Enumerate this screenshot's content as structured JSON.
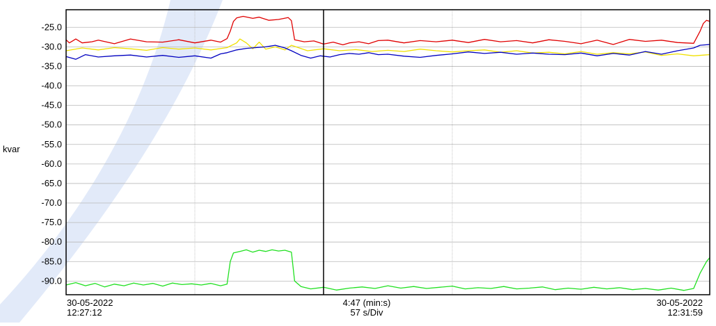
{
  "chart_data": {
    "type": "line",
    "ylabel": "kvar",
    "ylim": [
      -93.5,
      -20.5
    ],
    "yticks": [
      "-25.0",
      "-30.0",
      "-35.0",
      "-40.0",
      "-45.0",
      "-50.0",
      "-55.0",
      "-60.0",
      "-65.0",
      "-70.0",
      "-75.0",
      "-80.0",
      "-85.0",
      "-90.0"
    ],
    "ytick_values": [
      -25,
      -30,
      -35,
      -40,
      -45,
      -50,
      -55,
      -60,
      -65,
      -70,
      -75,
      -80,
      -85,
      -90
    ],
    "x_divisions": 5,
    "cursor_division": 2,
    "grid": true,
    "x_start": {
      "date": "30-05-2022",
      "time": "12:27:12"
    },
    "x_end": {
      "date": "30-05-2022",
      "time": "12:31:59"
    },
    "x_span": "4:47 (min:s)",
    "x_scale": "57 s/Div",
    "series": [
      {
        "color": "#e00000",
        "points": [
          [
            0,
            -28.2
          ],
          [
            1,
            -29
          ],
          [
            2,
            -28.5
          ],
          [
            3,
            -28
          ],
          [
            5,
            -29
          ],
          [
            8,
            -28.7
          ],
          [
            10,
            -28.3
          ],
          [
            15,
            -29.2
          ],
          [
            20,
            -28
          ],
          [
            25,
            -28.7
          ],
          [
            30,
            -28.8
          ],
          [
            35,
            -28.2
          ],
          [
            40,
            -29
          ],
          [
            45,
            -28.3
          ],
          [
            48,
            -28.8
          ],
          [
            50,
            -27.9
          ],
          [
            51,
            -26
          ],
          [
            52,
            -23.5
          ],
          [
            53,
            -22.6
          ],
          [
            55,
            -22.2
          ],
          [
            58,
            -22.7
          ],
          [
            60,
            -22.4
          ],
          [
            63,
            -23.2
          ],
          [
            66,
            -23
          ],
          [
            69,
            -22.5
          ],
          [
            70,
            -23.3
          ],
          [
            71,
            -28.2
          ],
          [
            74,
            -28.7
          ],
          [
            77,
            -28.5
          ],
          [
            80,
            -29.3
          ],
          [
            83,
            -28.8
          ],
          [
            86,
            -29.5
          ],
          [
            88,
            -29
          ],
          [
            91,
            -28.7
          ],
          [
            94,
            -29.2
          ],
          [
            97,
            -28.4
          ],
          [
            100,
            -28.3
          ],
          [
            105,
            -29
          ],
          [
            110,
            -28.4
          ],
          [
            115,
            -28.7
          ],
          [
            120,
            -28.3
          ],
          [
            125,
            -28.9
          ],
          [
            130,
            -28.1
          ],
          [
            135,
            -28.7
          ],
          [
            140,
            -28.4
          ],
          [
            145,
            -29
          ],
          [
            150,
            -28.2
          ],
          [
            155,
            -28.6
          ],
          [
            160,
            -29.2
          ],
          [
            165,
            -28.3
          ],
          [
            170,
            -29.4
          ],
          [
            175,
            -28.1
          ],
          [
            180,
            -28.6
          ],
          [
            185,
            -28.3
          ],
          [
            190,
            -28.9
          ],
          [
            195,
            -29.1
          ],
          [
            197,
            -26
          ],
          [
            198,
            -24
          ],
          [
            199,
            -23.2
          ],
          [
            200,
            -23.5
          ]
        ]
      },
      {
        "color": "#f0e000",
        "points": [
          [
            0,
            -31
          ],
          [
            5,
            -30.3
          ],
          [
            10,
            -30.8
          ],
          [
            15,
            -30.2
          ],
          [
            20,
            -30.5
          ],
          [
            25,
            -30.9
          ],
          [
            30,
            -30.2
          ],
          [
            35,
            -30.6
          ],
          [
            40,
            -30.3
          ],
          [
            45,
            -30.8
          ],
          [
            50,
            -30.2
          ],
          [
            53,
            -29
          ],
          [
            54,
            -28
          ],
          [
            56,
            -29
          ],
          [
            58,
            -30.5
          ],
          [
            60,
            -28.8
          ],
          [
            62,
            -30.6
          ],
          [
            65,
            -30
          ],
          [
            68,
            -30.8
          ],
          [
            70,
            -29.6
          ],
          [
            75,
            -31
          ],
          [
            80,
            -30.5
          ],
          [
            85,
            -31
          ],
          [
            90,
            -30.7
          ],
          [
            95,
            -31.2
          ],
          [
            100,
            -30.9
          ],
          [
            105,
            -31.2
          ],
          [
            110,
            -30.6
          ],
          [
            115,
            -31
          ],
          [
            120,
            -31.3
          ],
          [
            125,
            -31
          ],
          [
            130,
            -30.8
          ],
          [
            135,
            -31.4
          ],
          [
            140,
            -31
          ],
          [
            145,
            -31.6
          ],
          [
            150,
            -31.4
          ],
          [
            155,
            -31.8
          ],
          [
            160,
            -31.2
          ],
          [
            165,
            -31.9
          ],
          [
            170,
            -31.5
          ],
          [
            175,
            -31.8
          ],
          [
            180,
            -31.3
          ],
          [
            185,
            -32.2
          ],
          [
            190,
            -31.8
          ],
          [
            195,
            -32.3
          ],
          [
            200,
            -32
          ]
        ]
      },
      {
        "color": "#0000c0",
        "points": [
          [
            0,
            -32.5
          ],
          [
            3,
            -33.2
          ],
          [
            6,
            -32
          ],
          [
            10,
            -32.6
          ],
          [
            15,
            -32.3
          ],
          [
            20,
            -32.1
          ],
          [
            25,
            -32.6
          ],
          [
            30,
            -32.2
          ],
          [
            35,
            -32.7
          ],
          [
            40,
            -32.3
          ],
          [
            45,
            -32.9
          ],
          [
            48,
            -31.8
          ],
          [
            50,
            -31.5
          ],
          [
            53,
            -30.8
          ],
          [
            56,
            -30.4
          ],
          [
            59,
            -30.2
          ],
          [
            62,
            -30
          ],
          [
            65,
            -29.6
          ],
          [
            68,
            -30.3
          ],
          [
            70,
            -31
          ],
          [
            73,
            -32.2
          ],
          [
            76,
            -32.9
          ],
          [
            79,
            -32.3
          ],
          [
            82,
            -32.6
          ],
          [
            85,
            -32
          ],
          [
            88,
            -31.7
          ],
          [
            91,
            -31.9
          ],
          [
            94,
            -31.5
          ],
          [
            97,
            -32
          ],
          [
            100,
            -31.9
          ],
          [
            105,
            -32.4
          ],
          [
            110,
            -32.7
          ],
          [
            115,
            -32.2
          ],
          [
            120,
            -31.8
          ],
          [
            125,
            -31.3
          ],
          [
            130,
            -31.7
          ],
          [
            135,
            -31.4
          ],
          [
            140,
            -31.9
          ],
          [
            145,
            -31.6
          ],
          [
            150,
            -31.9
          ],
          [
            155,
            -32
          ],
          [
            160,
            -31.6
          ],
          [
            165,
            -32.3
          ],
          [
            170,
            -31.7
          ],
          [
            175,
            -32.1
          ],
          [
            180,
            -31.2
          ],
          [
            185,
            -31.9
          ],
          [
            190,
            -31
          ],
          [
            195,
            -30.3
          ],
          [
            197,
            -29.6
          ],
          [
            200,
            -29.4
          ]
        ]
      },
      {
        "color": "#20e020",
        "points": [
          [
            0,
            -91
          ],
          [
            3,
            -90.4
          ],
          [
            6,
            -91.2
          ],
          [
            9,
            -90.6
          ],
          [
            12,
            -91.5
          ],
          [
            15,
            -90.8
          ],
          [
            18,
            -91.2
          ],
          [
            21,
            -90.5
          ],
          [
            24,
            -91
          ],
          [
            27,
            -90.6
          ],
          [
            30,
            -91.3
          ],
          [
            33,
            -90.5
          ],
          [
            36,
            -90.9
          ],
          [
            39,
            -90.7
          ],
          [
            42,
            -91
          ],
          [
            45,
            -90.6
          ],
          [
            48,
            -91.2
          ],
          [
            50,
            -90.8
          ],
          [
            51,
            -85
          ],
          [
            52,
            -82.8
          ],
          [
            54,
            -82.4
          ],
          [
            56,
            -82
          ],
          [
            58,
            -82.6
          ],
          [
            60,
            -82.1
          ],
          [
            62,
            -82.4
          ],
          [
            64,
            -82
          ],
          [
            66,
            -82.3
          ],
          [
            68,
            -82.1
          ],
          [
            70,
            -82.6
          ],
          [
            71,
            -90
          ],
          [
            73,
            -91.4
          ],
          [
            76,
            -92
          ],
          [
            80,
            -91.6
          ],
          [
            84,
            -92.3
          ],
          [
            88,
            -91.8
          ],
          [
            92,
            -91.5
          ],
          [
            96,
            -91.9
          ],
          [
            100,
            -91.2
          ],
          [
            104,
            -91.8
          ],
          [
            108,
            -91.4
          ],
          [
            112,
            -91.9
          ],
          [
            116,
            -91.6
          ],
          [
            120,
            -91.3
          ],
          [
            124,
            -92
          ],
          [
            128,
            -91.7
          ],
          [
            132,
            -91.9
          ],
          [
            136,
            -91.4
          ],
          [
            140,
            -92
          ],
          [
            144,
            -91.8
          ],
          [
            148,
            -91.5
          ],
          [
            152,
            -92.2
          ],
          [
            156,
            -91.8
          ],
          [
            160,
            -92.1
          ],
          [
            164,
            -91.6
          ],
          [
            168,
            -92
          ],
          [
            172,
            -91.7
          ],
          [
            176,
            -92.2
          ],
          [
            180,
            -91.9
          ],
          [
            184,
            -92.3
          ],
          [
            188,
            -91.8
          ],
          [
            192,
            -92.4
          ],
          [
            195,
            -91.9
          ],
          [
            197,
            -88
          ],
          [
            199,
            -85
          ],
          [
            200,
            -84
          ]
        ]
      }
    ]
  }
}
